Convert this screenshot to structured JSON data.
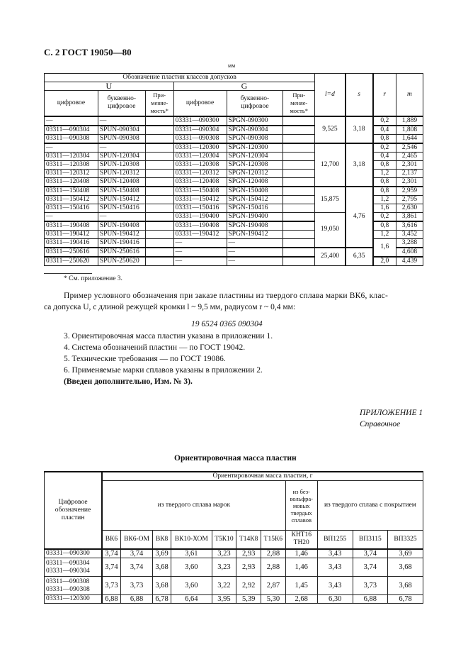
{
  "header": {
    "page_title": "С. 2 ГОСТ 19050—80",
    "unit": "мм"
  },
  "table1": {
    "group_header": "Обозначение пластин классов допусков",
    "class_u": "U",
    "class_g": "G",
    "sub": [
      "цифровое",
      "буквенно-цифровое",
      "При-меняе-мость*",
      "цифровое",
      "буквенно-цифровое",
      "При-меняе-мость*"
    ],
    "col_ld": "l=d",
    "col_s": "s",
    "col_r": "r",
    "col_m": "m",
    "rows": [
      [
        "—",
        "—",
        "",
        "03331—090300",
        "SPGN-090300",
        "",
        "0,2",
        "1,889"
      ],
      [
        "03311—090304",
        "SPUN-090304",
        "",
        "03331—090304",
        "SPGN-090304",
        "",
        "0,4",
        "1,808"
      ],
      [
        "03311—090308",
        "SPUN-090308",
        "",
        "03331—090308",
        "SPGN-090308",
        "",
        "0,8",
        "1,644"
      ],
      [
        "—",
        "—",
        "",
        "03331—120300",
        "SPGN-120300",
        "",
        "0,2",
        "2,546"
      ],
      [
        "03311—120304",
        "SPUN-120304",
        "",
        "03331—120304",
        "SPGN-120304",
        "",
        "0,4",
        "2,465"
      ],
      [
        "03311—120308",
        "SPUN-120308",
        "",
        "03331—120308",
        "SPGN-120308",
        "",
        "0,8",
        "2,301"
      ],
      [
        "03311—120312",
        "SPUN-120312",
        "",
        "03331—120312",
        "SPGN-120312",
        "",
        "1,2",
        "2,137"
      ],
      [
        "03311—120408",
        "SPUN-120408",
        "",
        "03331—120408",
        "SPGN-120408",
        "",
        "0,8",
        "2,301"
      ],
      [
        "03311—150408",
        "SPUN-150408",
        "",
        "03331—150408",
        "SPGN-150408",
        "",
        "0,8",
        "2,959"
      ],
      [
        "03311—150412",
        "SPUN-150412",
        "",
        "03331—150412",
        "SPGN-150412",
        "",
        "1,2",
        "2,795"
      ],
      [
        "03311—150416",
        "SPUN-150416",
        "",
        "03331—150416",
        "SPGN-150416",
        "",
        "1,6",
        "2,630"
      ],
      [
        "—",
        "—",
        "",
        "03331—190400",
        "SPGN-190400",
        "",
        "0,2",
        "3,861"
      ],
      [
        "03311—190408",
        "SPUN-190408",
        "",
        "03331—190408",
        "SPGN-190408",
        "",
        "0,8",
        "3,616"
      ],
      [
        "03311—190412",
        "SPUN-190412",
        "",
        "03331—190412",
        "SPGN-190412",
        "",
        "1,2",
        "3,452"
      ],
      [
        "03311—190416",
        "SPUN-190416",
        "",
        "—",
        "—",
        "",
        "1,6",
        "3,288"
      ],
      [
        "03311—250616",
        "SPUN-250616",
        "",
        "—",
        "—",
        "",
        "",
        "4,608"
      ],
      [
        "03311—250620",
        "SPUN-250620",
        "",
        "—",
        "—",
        "",
        "2,0",
        "4,439"
      ]
    ],
    "ld": [
      "9,525",
      "12,700",
      "15,875",
      "19,050",
      "25,400"
    ],
    "s": [
      "3,18",
      "3,18",
      "4,76",
      "6,35"
    ]
  },
  "footnote": "* См. приложение 3.",
  "example": {
    "line1": "Пример условного обозначения при заказе пластины из твердого сплава марки ВК6, клас-",
    "line2": "са допуска U, с длиной режущей кромки l ~ 9,5 мм, радиусом r ~ 0,4 мм:",
    "code": "19 6524 0365 090304"
  },
  "items": [
    "3. Ориентировочная масса пластин указана в приложении 1.",
    "4. Система обозначений пластин — по ГОСТ 19042.",
    "5. Технические требования — по ГОСТ 19086.",
    "6. Применяемые марки сплавов указаны в приложении 2."
  ],
  "amendment": "(Введен дополнительно, Изм. № 3).",
  "appendix": {
    "label": "ПРИЛОЖЕНИЕ 1",
    "type": "Справочное",
    "title": "Ориентировочная масса пластин"
  },
  "table2": {
    "row_header": "Цифровое обозначение пластин",
    "group": "Ориентировочная масса пластин, г",
    "g1": "из твердого сплава марок",
    "g2": "из без-вольфра-мовых твердых сплавов",
    "g3": "из твердого сплава с покрытием",
    "cols": [
      "ВК6",
      "ВК6-ОМ",
      "ВК8",
      "ВК10-ХОМ",
      "Т5К10",
      "Т14К8",
      "Т15К6",
      "КНТ16 ТН20",
      "ВП1255",
      "ВП3115",
      "ВП3325"
    ],
    "rows": [
      {
        "name": "03331—090300",
        "v": [
          "3,74",
          "3,74",
          "3,69",
          "3,61",
          "3,23",
          "2,93",
          "2,88",
          "1,46",
          "3,43",
          "3,74",
          "3,69"
        ]
      },
      {
        "name": "03311—090304 03331—090304",
        "v": [
          "3,74",
          "3,74",
          "3,68",
          "3,60",
          "3,23",
          "2,93",
          "2,88",
          "1,46",
          "3,43",
          "3,74",
          "3,68"
        ]
      },
      {
        "name": "03311—090308 03331—090308",
        "v": [
          "3,73",
          "3,73",
          "3,68",
          "3,60",
          "3,22",
          "2,92",
          "2,87",
          "1,45",
          "3,43",
          "3,73",
          "3,68"
        ]
      },
      {
        "name": "03331—120300",
        "v": [
          "6,88",
          "6,88",
          "6,78",
          "6,64",
          "3,95",
          "5,39",
          "5,30",
          "2,68",
          "6,30",
          "6,88",
          "6,78"
        ]
      }
    ]
  }
}
